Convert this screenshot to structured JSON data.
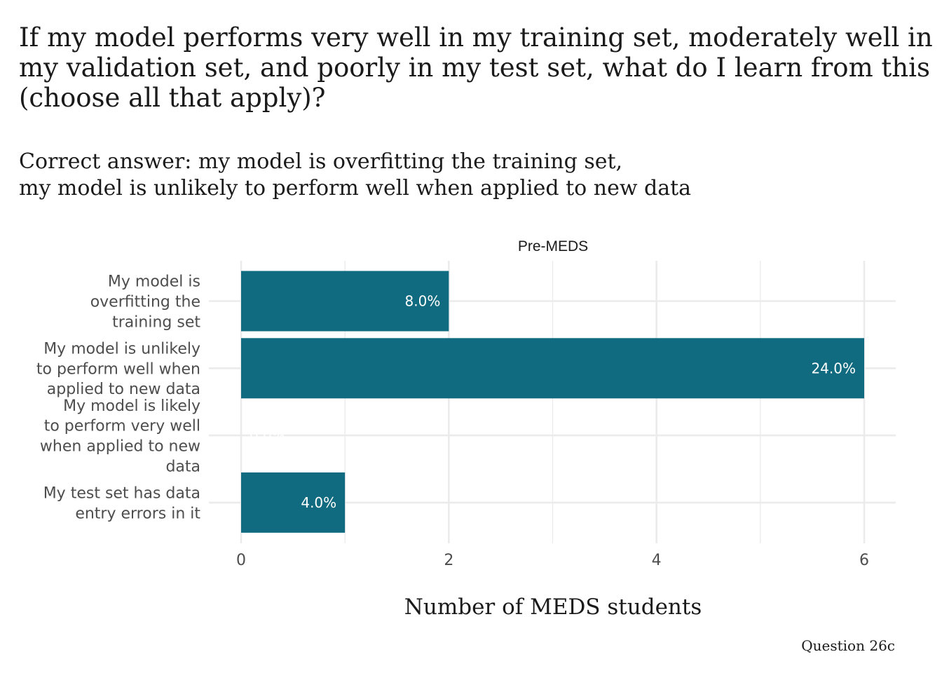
{
  "title": "If my model performs very well in my training set, moderately well in my validation set, and poorly in my test set, what do I learn from this (choose all that apply)?",
  "subtitle": {
    "line1": "Correct answer: my model is overfitting the training set,",
    "line2": "my model is unlikely to perform well when applied to new data"
  },
  "caption": "Question 26c",
  "colors": {
    "bar": "#106b80",
    "grid": "#ebebeb",
    "label": "#ffffff"
  },
  "chart_data": {
    "type": "bar",
    "orientation": "horizontal",
    "facet_label": "Pre-MEDS",
    "categories": [
      [
        "My model is",
        "overfitting the",
        "training set"
      ],
      [
        "My model is unlikely",
        "to perform well when",
        "applied to new data"
      ],
      [
        "My model is likely",
        "to perform very well",
        "when applied to new",
        "data"
      ],
      [
        "My test set has data",
        "entry errors in it"
      ]
    ],
    "values": [
      2,
      6,
      0,
      1
    ],
    "labels": [
      "8.0%",
      "24.0%",
      "0.0%",
      "4.0%"
    ],
    "xlabel": "Number of MEDS students",
    "ylabel": "",
    "xlim": [
      0,
      6.3
    ],
    "xticks": [
      0,
      2,
      4,
      6
    ],
    "grid": true
  }
}
